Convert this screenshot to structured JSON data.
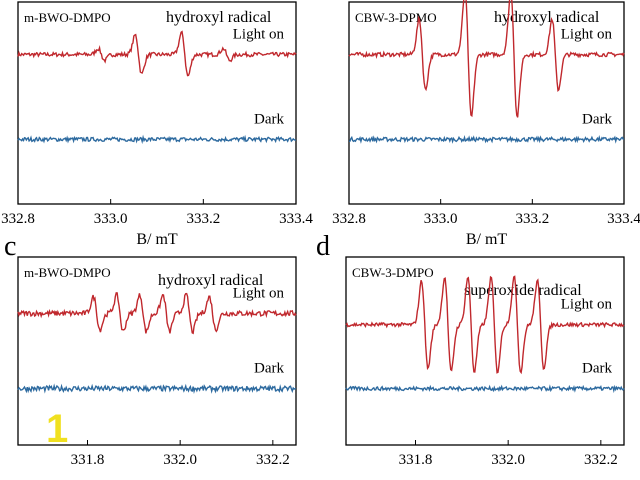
{
  "panel_letters": [
    "",
    "",
    "c",
    "d"
  ],
  "colors": {
    "light_on": "#c0282d",
    "dark": "#2d6a9f",
    "axis": "#000000",
    "badge": "#f0e020"
  },
  "badge": "1",
  "chart_data": [
    {
      "type": "line",
      "label": "m-BWO-DMPO",
      "radical": "hydroxyl radical",
      "xlabel": "B/ mT",
      "xticks": [
        "332.8",
        "333.0",
        "333.2",
        "333.4"
      ],
      "xtick_values": [
        332.8,
        333.0,
        333.2,
        333.4
      ],
      "xlim": [
        332.8,
        333.4
      ],
      "ylim": [
        -1,
        4
      ],
      "series": [
        {
          "name": "Light on",
          "baseline": 2.7,
          "noise": 0.05,
          "peaks": [
            {
              "x": 332.98,
              "a": 0.15
            },
            {
              "x": 333.06,
              "a": 0.5
            },
            {
              "x": 333.16,
              "a": 0.55
            },
            {
              "x": 333.25,
              "a": 0.15
            }
          ]
        },
        {
          "name": "Dark",
          "baseline": 0.6,
          "noise": 0.05,
          "peaks": []
        }
      ]
    },
    {
      "type": "line",
      "label": "CBW-3-DPMO",
      "radical": "hydroxyl radical",
      "xlabel": "B/ mT",
      "xticks": [
        "332.8",
        "333.0",
        "333.2",
        "333.4"
      ],
      "xtick_values": [
        332.8,
        333.0,
        333.2,
        333.4
      ],
      "xlim": [
        332.8,
        333.4
      ],
      "ylim": [
        -1,
        4
      ],
      "series": [
        {
          "name": "Light on",
          "baseline": 2.7,
          "noise": 0.05,
          "peaks": [
            {
              "x": 332.96,
              "a": 0.9
            },
            {
              "x": 333.06,
              "a": 1.6
            },
            {
              "x": 333.16,
              "a": 1.6
            },
            {
              "x": 333.25,
              "a": 0.9
            }
          ]
        },
        {
          "name": "Dark",
          "baseline": 0.6,
          "noise": 0.05,
          "peaks": []
        }
      ]
    },
    {
      "type": "line",
      "label": "m-BWO-DMPO",
      "radical": "hydroxyl radical",
      "xlabel": "",
      "xticks": [
        "331.8",
        "332.0",
        "332.2"
      ],
      "xtick_values": [
        331.8,
        332.0,
        332.2
      ],
      "xlim": [
        331.65,
        332.25
      ],
      "ylim": [
        -1,
        4
      ],
      "series": [
        {
          "name": "Light on",
          "baseline": 2.5,
          "noise": 0.07,
          "peaks": [
            {
              "x": 331.82,
              "a": 0.45
            },
            {
              "x": 331.87,
              "a": 0.5
            },
            {
              "x": 331.92,
              "a": 0.5
            },
            {
              "x": 331.97,
              "a": 0.5
            },
            {
              "x": 332.02,
              "a": 0.5
            },
            {
              "x": 332.07,
              "a": 0.45
            }
          ]
        },
        {
          "name": "Dark",
          "baseline": 0.5,
          "noise": 0.07,
          "peaks": []
        }
      ]
    },
    {
      "type": "line",
      "label": "CBW-3-DMPO",
      "radical": "superoxide radical",
      "xlabel": "",
      "xticks": [
        "331.8",
        "332.0",
        "332.2"
      ],
      "xtick_values": [
        331.8,
        332.0,
        332.2
      ],
      "xlim": [
        331.65,
        332.25
      ],
      "ylim": [
        -1,
        4
      ],
      "series": [
        {
          "name": "Light on",
          "baseline": 2.2,
          "noise": 0.05,
          "peaks": [
            {
              "x": 331.82,
              "a": 1.2
            },
            {
              "x": 331.87,
              "a": 1.3
            },
            {
              "x": 331.92,
              "a": 1.3
            },
            {
              "x": 331.97,
              "a": 1.3
            },
            {
              "x": 332.02,
              "a": 1.3
            },
            {
              "x": 332.07,
              "a": 1.2
            }
          ]
        },
        {
          "name": "Dark",
          "baseline": 0.5,
          "noise": 0.05,
          "peaks": []
        }
      ]
    }
  ]
}
